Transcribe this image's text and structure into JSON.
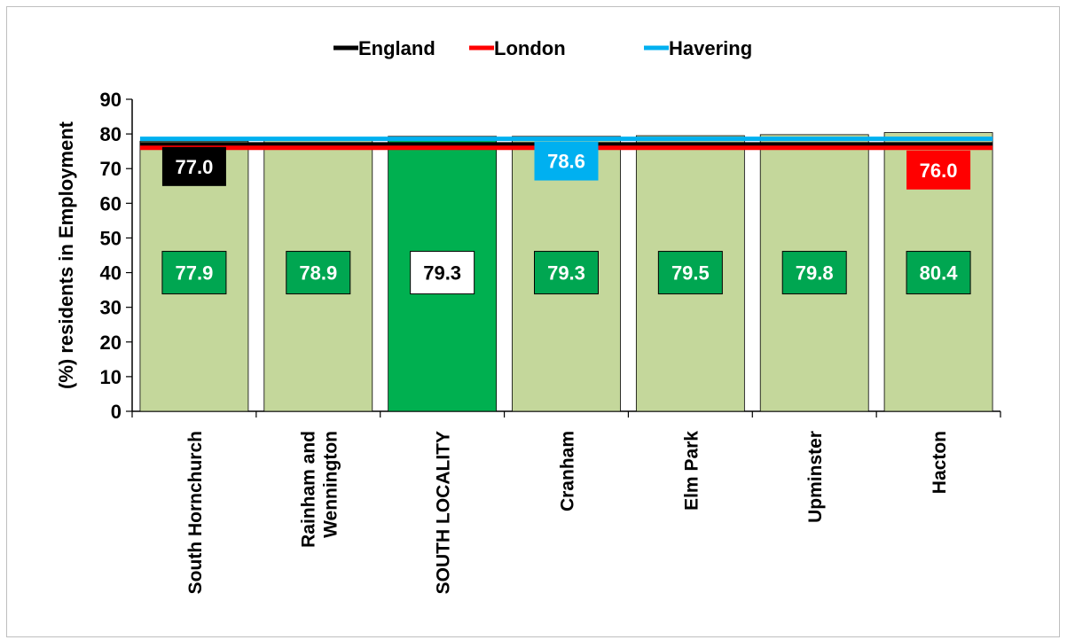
{
  "chart_data": {
    "type": "bar",
    "title": "",
    "xlabel": "",
    "ylabel": "(%) residents in Employment",
    "ylim": [
      0,
      90
    ],
    "yticks": [
      0,
      10,
      20,
      30,
      40,
      50,
      60,
      70,
      80,
      90
    ],
    "grid": false,
    "legend_position": "top",
    "categories": [
      "South Hornchurch",
      "Rainham and Wennington",
      "SOUTH LOCALITY",
      "Cranham",
      "Elm Park",
      "Upminster",
      "Hacton"
    ],
    "category_lines": [
      [
        "South Hornchurch"
      ],
      [
        "Rainham and",
        "Wennington"
      ],
      [
        "SOUTH LOCALITY"
      ],
      [
        "Cranham"
      ],
      [
        "Elm Park"
      ],
      [
        "Upminster"
      ],
      [
        "Hacton"
      ]
    ],
    "values": [
      77.9,
      78.9,
      79.3,
      79.3,
      79.5,
      79.8,
      80.4
    ],
    "value_labels": [
      "77.9",
      "78.9",
      "79.3",
      "79.3",
      "79.5",
      "79.8",
      "80.4"
    ],
    "highlight_index": 2,
    "colors": {
      "bar": "#c4d79b",
      "bar_highlight": "#00b050",
      "bar_border": "#000000",
      "label_box": "#00a651",
      "label_box_highlight": "#ffffff"
    },
    "reference_lines": [
      {
        "name": "England",
        "value": 77.0,
        "label": "77.0",
        "color": "#000000",
        "label_category": 0,
        "label_side": "below"
      },
      {
        "name": "London",
        "value": 76.0,
        "label": "76.0",
        "color": "#ff0000",
        "label_category": 6,
        "label_side": "below"
      },
      {
        "name": "Havering",
        "value": 78.6,
        "label": "78.6",
        "color": "#00b0f0",
        "label_category": 3,
        "label_side": "below"
      }
    ]
  }
}
